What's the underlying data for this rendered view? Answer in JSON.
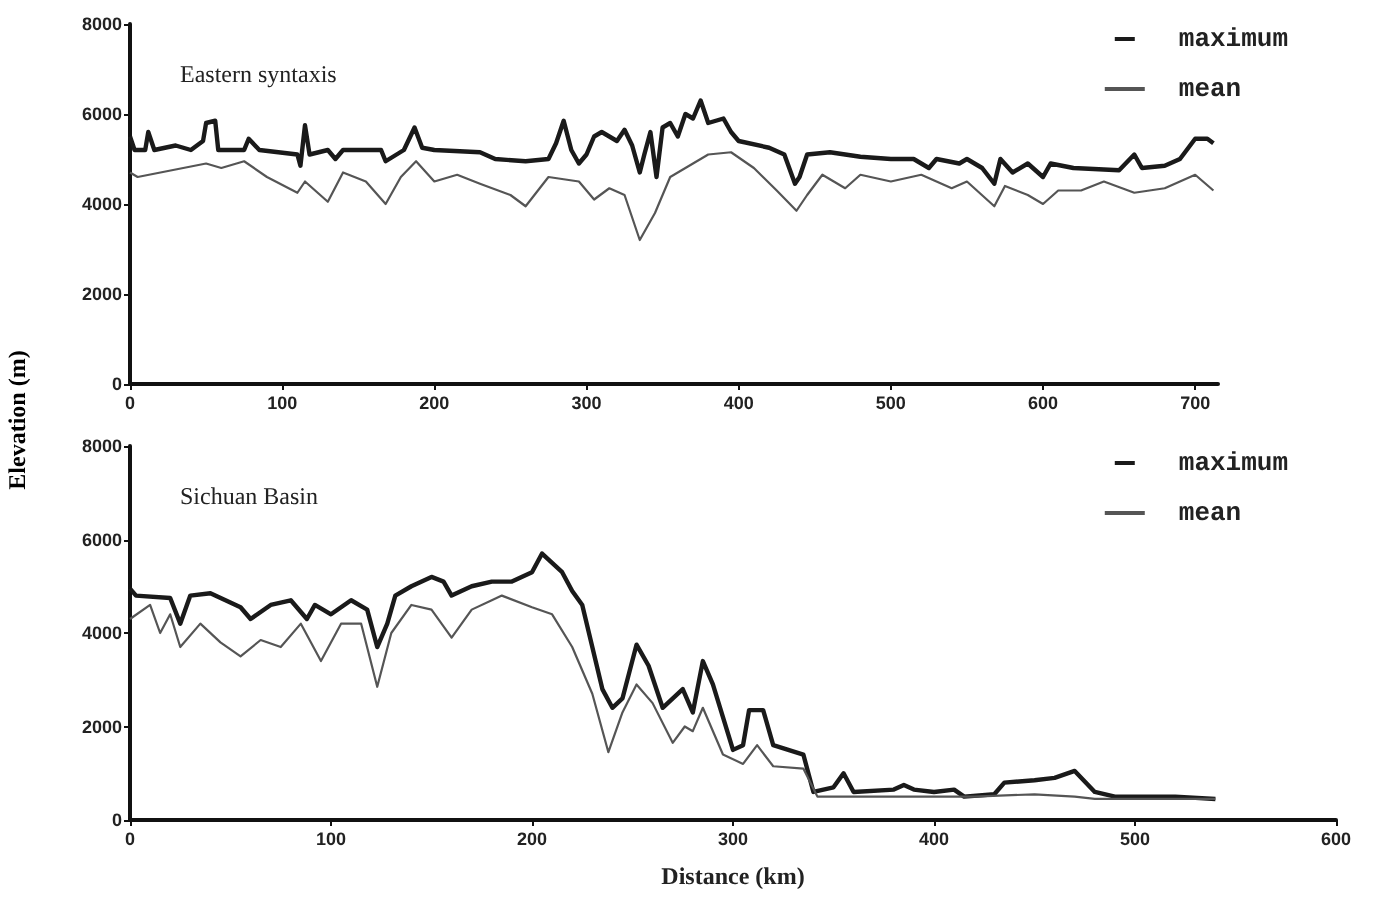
{
  "chart_data": [
    {
      "type": "line",
      "title": "Eastern syntaxis",
      "ylabel": "Elevation (m)",
      "xlim": [
        0,
        715
      ],
      "xticks": [
        0,
        100,
        200,
        300,
        400,
        500,
        600,
        700
      ],
      "ylim": [
        0,
        8000
      ],
      "yticks": [
        0,
        2000,
        4000,
        6000,
        8000
      ],
      "grid": false,
      "legend": "top right",
      "marker": "none",
      "line_style": "solid",
      "series": [
        {
          "name": "maximum",
          "color": "#1a1a1a",
          "x": [
            0,
            3,
            10,
            12,
            16,
            30,
            40,
            48,
            50,
            56,
            58,
            75,
            78,
            85,
            110,
            112,
            115,
            118,
            130,
            135,
            140,
            165,
            168,
            180,
            187,
            192,
            200,
            230,
            240,
            260,
            275,
            280,
            285,
            290,
            295,
            300,
            305,
            310,
            320,
            325,
            330,
            335,
            338,
            342,
            346,
            350,
            355,
            360,
            365,
            370,
            375,
            380,
            390,
            395,
            400,
            420,
            430,
            437,
            440,
            445,
            460,
            480,
            500,
            515,
            525,
            530,
            545,
            550,
            560,
            568,
            572,
            580,
            590,
            600,
            605,
            620,
            650,
            660,
            665,
            680,
            690,
            700,
            708,
            712
          ],
          "values": [
            5500,
            5200,
            5200,
            5600,
            5200,
            5300,
            5200,
            5400,
            5800,
            5850,
            5200,
            5200,
            5450,
            5200,
            5100,
            4850,
            5750,
            5100,
            5200,
            5000,
            5200,
            5200,
            4950,
            5200,
            5700,
            5250,
            5200,
            5150,
            5000,
            4950,
            5000,
            5350,
            5850,
            5200,
            4900,
            5100,
            5500,
            5600,
            5400,
            5650,
            5300,
            4700,
            5100,
            5600,
            4600,
            5700,
            5800,
            5500,
            6000,
            5900,
            6300,
            5800,
            5900,
            5600,
            5400,
            5250,
            5100,
            4450,
            4600,
            5100,
            5150,
            5050,
            5000,
            5000,
            4800,
            5000,
            4900,
            5000,
            4800,
            4450,
            5000,
            4700,
            4900,
            4600,
            4900,
            4800,
            4750,
            5100,
            4800,
            4850,
            5000,
            5450,
            5450,
            5350
          ]
        },
        {
          "name": "mean",
          "color": "#555555",
          "x": [
            0,
            5,
            20,
            50,
            60,
            75,
            90,
            110,
            115,
            130,
            140,
            155,
            168,
            178,
            188,
            200,
            215,
            230,
            250,
            260,
            275,
            295,
            305,
            315,
            325,
            335,
            345,
            355,
            370,
            380,
            395,
            410,
            425,
            438,
            445,
            455,
            470,
            480,
            500,
            520,
            540,
            550,
            568,
            575,
            590,
            600,
            610,
            625,
            640,
            660,
            680,
            700,
            712
          ],
          "values": [
            4700,
            4600,
            4700,
            4900,
            4800,
            4950,
            4600,
            4250,
            4500,
            4050,
            4700,
            4500,
            4000,
            4600,
            4950,
            4500,
            4650,
            4450,
            4200,
            3950,
            4600,
            4500,
            4100,
            4350,
            4200,
            3200,
            3800,
            4600,
            4900,
            5100,
            5150,
            4800,
            4300,
            3850,
            4200,
            4650,
            4350,
            4650,
            4500,
            4650,
            4350,
            4500,
            3950,
            4400,
            4200,
            4000,
            4300,
            4300,
            4500,
            4250,
            4350,
            4650,
            4300
          ]
        }
      ]
    },
    {
      "type": "line",
      "title": "Sichuan Basin",
      "xlabel": "Distance (km)",
      "xlim": [
        0,
        600
      ],
      "xticks": [
        0,
        100,
        200,
        300,
        400,
        500,
        600
      ],
      "ylim": [
        0,
        8000
      ],
      "yticks": [
        0,
        2000,
        4000,
        6000,
        8000
      ],
      "grid": false,
      "legend": "top right",
      "marker": "none",
      "line_style": "solid",
      "series": [
        {
          "name": "maximum",
          "color": "#1a1a1a",
          "x": [
            0,
            3,
            20,
            25,
            30,
            40,
            55,
            60,
            70,
            80,
            88,
            92,
            100,
            110,
            118,
            123,
            128,
            132,
            140,
            150,
            156,
            160,
            170,
            180,
            190,
            200,
            205,
            210,
            215,
            220,
            225,
            235,
            240,
            245,
            252,
            258,
            265,
            275,
            280,
            285,
            290,
            300,
            305,
            308,
            315,
            320,
            335,
            340,
            350,
            355,
            360,
            380,
            385,
            390,
            400,
            410,
            415,
            430,
            435,
            450,
            460,
            470,
            480,
            490,
            520,
            540
          ],
          "values": [
            4950,
            4800,
            4750,
            4200,
            4800,
            4850,
            4550,
            4300,
            4600,
            4700,
            4300,
            4600,
            4400,
            4700,
            4500,
            3700,
            4200,
            4800,
            5000,
            5200,
            5100,
            4800,
            5000,
            5100,
            5100,
            5300,
            5700,
            5500,
            5300,
            4900,
            4600,
            2800,
            2400,
            2600,
            3750,
            3300,
            2400,
            2800,
            2300,
            3400,
            2900,
            1500,
            1600,
            2350,
            2350,
            1600,
            1400,
            600,
            700,
            1000,
            600,
            650,
            750,
            650,
            600,
            650,
            500,
            550,
            800,
            850,
            900,
            1050,
            600,
            500,
            500,
            450
          ]
        },
        {
          "name": "mean",
          "color": "#555555",
          "x": [
            0,
            10,
            15,
            20,
            25,
            35,
            45,
            55,
            65,
            75,
            85,
            95,
            105,
            115,
            123,
            130,
            140,
            150,
            160,
            170,
            180,
            185,
            200,
            210,
            220,
            230,
            238,
            245,
            252,
            260,
            270,
            276,
            280,
            285,
            295,
            305,
            312,
            320,
            335,
            342,
            360,
            400,
            420,
            450,
            470,
            480,
            540
          ],
          "values": [
            4300,
            4600,
            4000,
            4400,
            3700,
            4200,
            3800,
            3500,
            3850,
            3700,
            4200,
            3400,
            4200,
            4200,
            2850,
            4000,
            4600,
            4500,
            3900,
            4500,
            4700,
            4800,
            4550,
            4400,
            3700,
            2700,
            1450,
            2300,
            2900,
            2500,
            1650,
            2000,
            1900,
            2400,
            1400,
            1200,
            1600,
            1150,
            1100,
            500,
            500,
            500,
            500,
            550,
            500,
            450,
            450
          ]
        }
      ]
    }
  ]
}
